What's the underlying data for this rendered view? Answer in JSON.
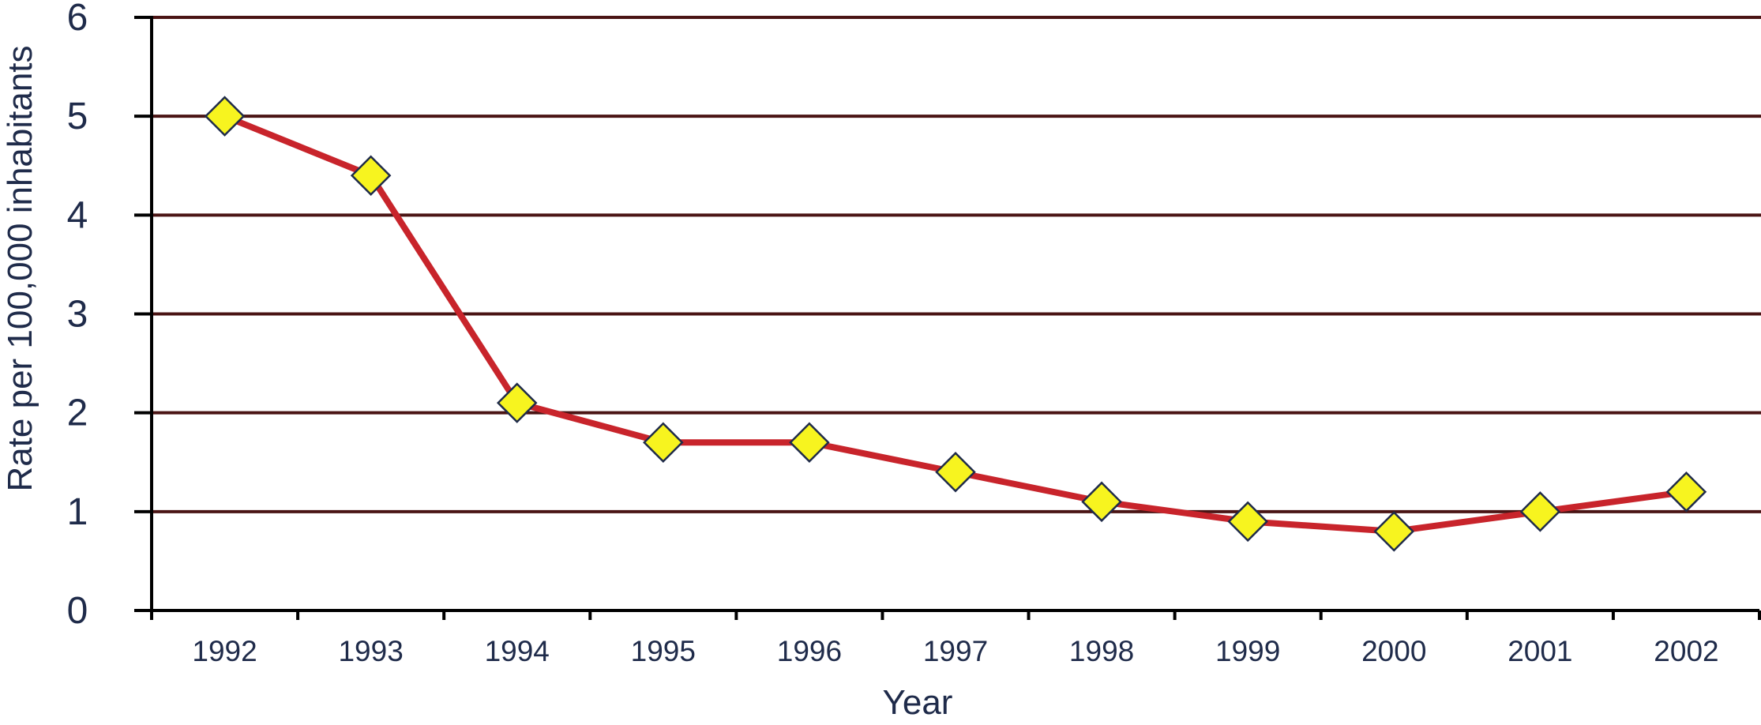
{
  "chart_data": {
    "type": "line",
    "title": "",
    "xlabel": "Year",
    "ylabel": "Rate per 100,000 inhabitants",
    "categories": [
      "1992",
      "1993",
      "1994",
      "1995",
      "1996",
      "1997",
      "1998",
      "1999",
      "2000",
      "2001",
      "2002"
    ],
    "series": [
      {
        "values": [
          5.0,
          4.4,
          2.1,
          1.7,
          1.7,
          1.4,
          1.1,
          0.9,
          0.8,
          1.0,
          1.2
        ]
      }
    ],
    "ylim": [
      0,
      6
    ],
    "yticks": [
      "0",
      "1",
      "2",
      "3",
      "4",
      "5",
      "6"
    ],
    "grid": "horizontal",
    "colors": {
      "line": "#c8242b",
      "marker_fill": "#f7f41f",
      "marker_stroke": "#1f2b4a",
      "grid": "#4a1414",
      "axis": "#000000"
    }
  }
}
